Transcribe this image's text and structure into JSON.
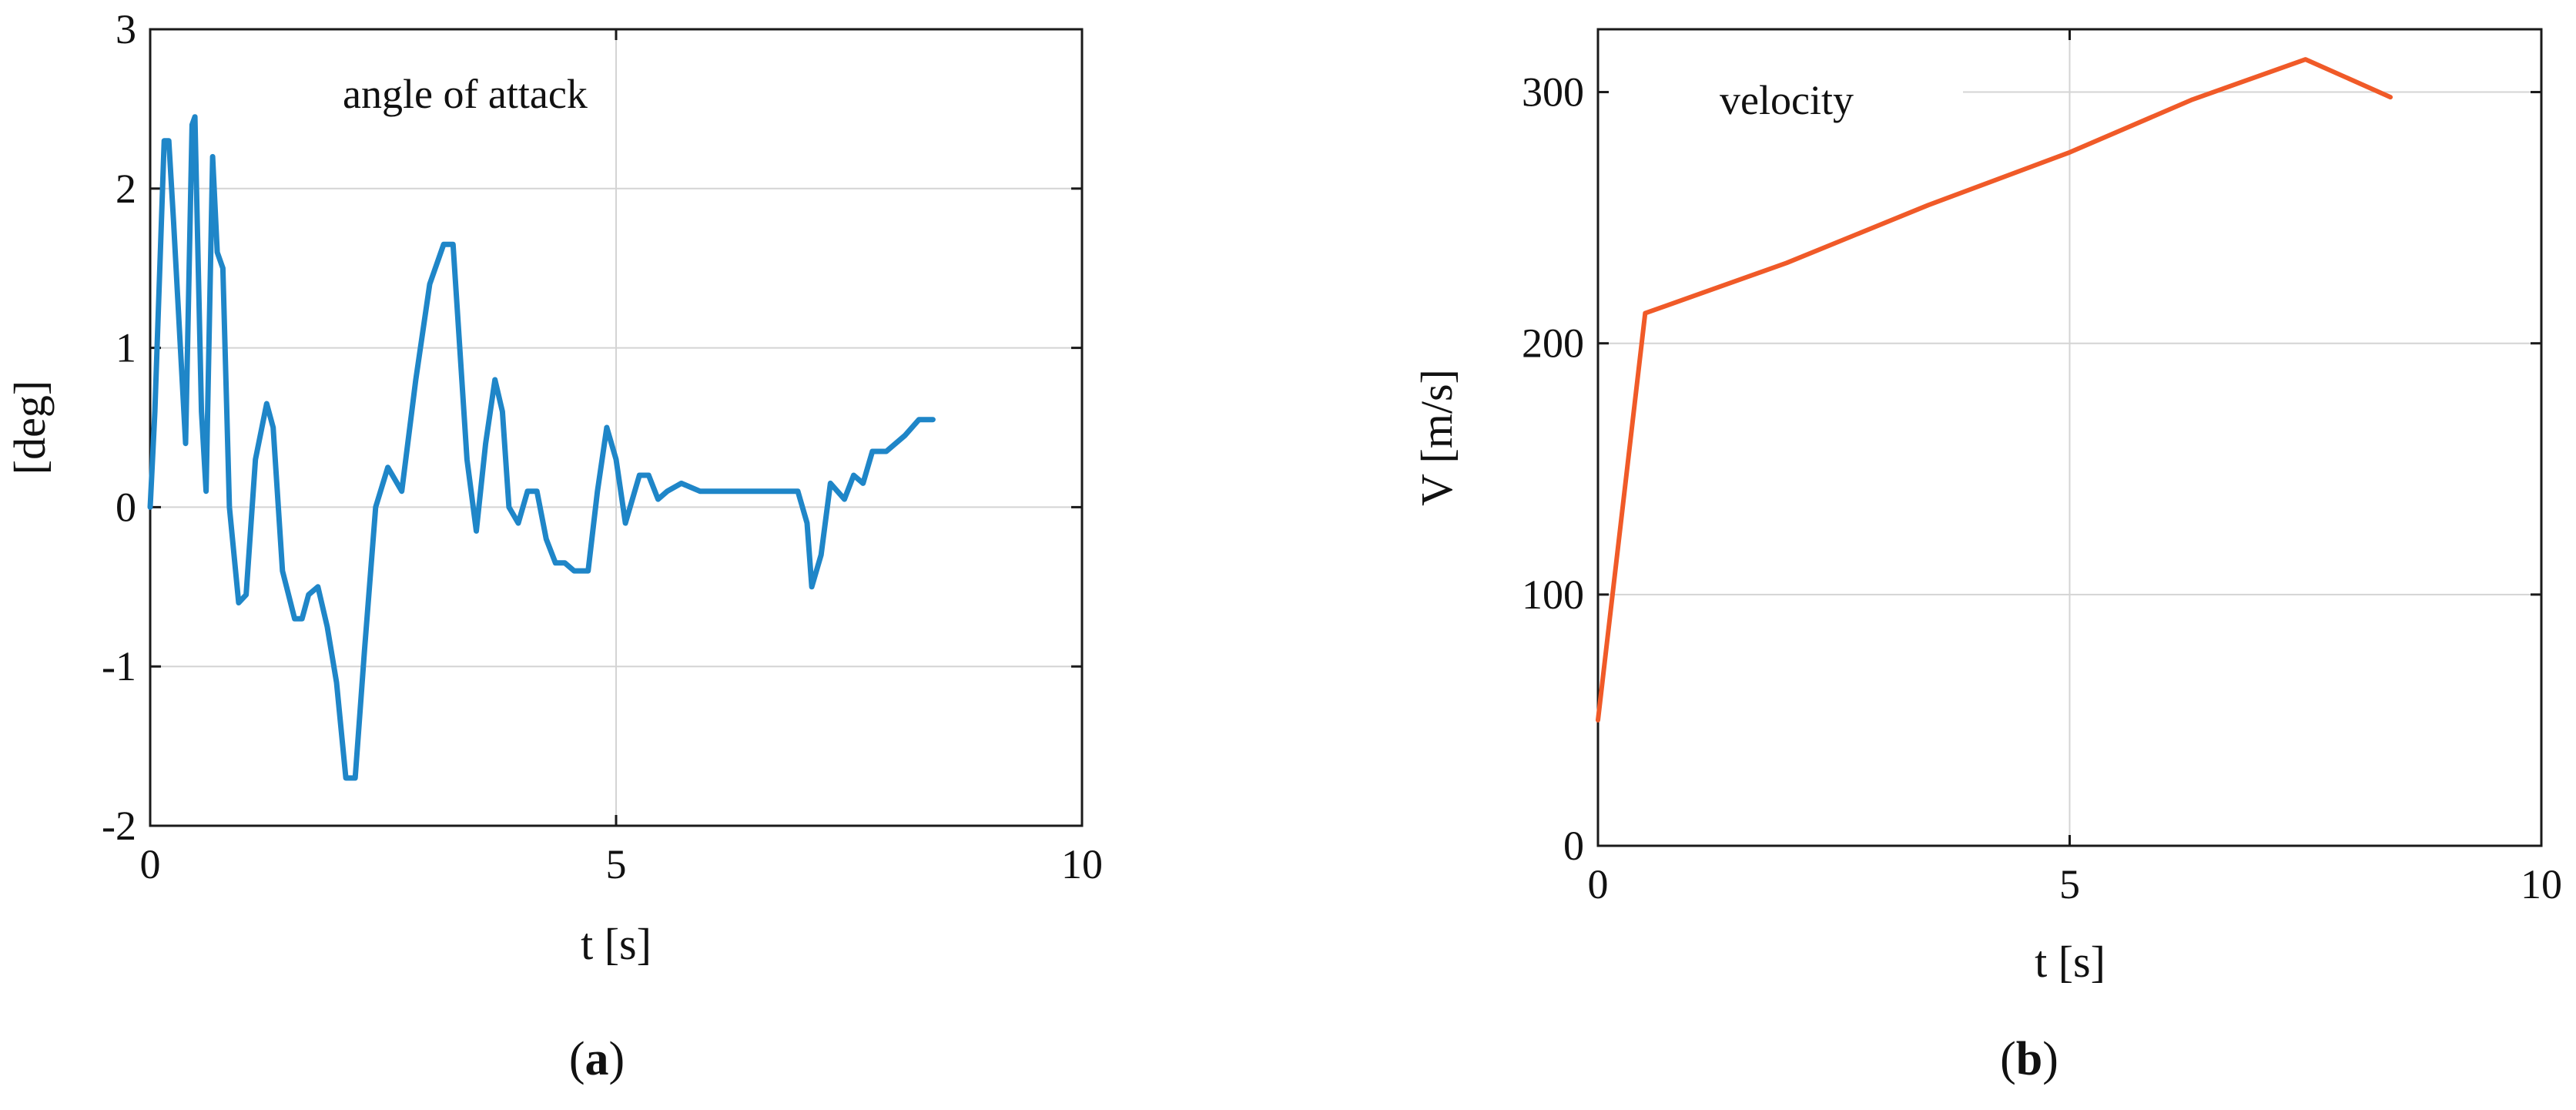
{
  "colors": {
    "panel_a_line": "#1f86c8",
    "panel_b_line": "#f05a28",
    "grid": "#d4d4d4",
    "axes": "#1a1a1a"
  },
  "panels": [
    {
      "caption_prefix": "(",
      "caption_letter": "a",
      "caption_suffix": ")"
    },
    {
      "caption_prefix": "(",
      "caption_letter": "b",
      "caption_suffix": ")"
    }
  ],
  "chart_data": [
    {
      "type": "line",
      "title": "angle of attack",
      "xlabel": "t [s]",
      "ylabel": "[deg]",
      "xlim": [
        0,
        10
      ],
      "ylim": [
        -2,
        3
      ],
      "xticks": [
        0,
        5,
        10
      ],
      "yticks": [
        -2,
        -1,
        0,
        1,
        2,
        3
      ],
      "xtick_labels": [
        "0",
        "5",
        "10"
      ],
      "ytick_labels": [
        "-2",
        "-1",
        "0",
        "1",
        "2",
        "3"
      ],
      "grid": true,
      "series": [
        {
          "x": [
            0,
            0.05,
            0.15,
            0.2,
            0.25,
            0.38,
            0.45,
            0.48,
            0.55,
            0.6,
            0.67,
            0.72,
            0.78,
            0.85,
            0.95,
            1.03,
            1.13,
            1.25,
            1.32,
            1.42,
            1.55,
            1.63,
            1.7,
            1.8,
            1.9,
            2.0,
            2.1,
            2.2,
            2.3,
            2.42,
            2.55,
            2.7,
            2.85,
            3.0,
            3.15,
            3.25,
            3.4,
            3.5,
            3.6,
            3.7,
            3.78,
            3.85,
            3.95,
            4.05,
            4.15,
            4.25,
            4.35,
            4.45,
            4.55,
            4.7,
            4.8,
            4.9,
            5.0,
            5.1,
            5.25,
            5.35,
            5.45,
            5.55,
            5.7,
            5.9,
            6.0,
            6.2,
            6.4,
            6.6,
            6.8,
            6.95,
            7.05,
            7.1,
            7.2,
            7.3,
            7.45,
            7.55,
            7.65,
            7.75,
            7.9,
            8.1,
            8.25,
            8.4
          ],
          "y": [
            0,
            0.6,
            2.3,
            2.3,
            1.8,
            0.4,
            2.4,
            2.45,
            0.6,
            0.1,
            2.2,
            1.6,
            1.5,
            0,
            -0.6,
            -0.55,
            0.3,
            0.65,
            0.5,
            -0.4,
            -0.7,
            -0.7,
            -0.55,
            -0.5,
            -0.75,
            -1.1,
            -1.7,
            -1.7,
            -0.9,
            0,
            0.25,
            0.1,
            0.8,
            1.4,
            1.65,
            1.65,
            0.3,
            -0.15,
            0.4,
            0.8,
            0.6,
            0,
            -0.1,
            0.1,
            0.1,
            -0.2,
            -0.35,
            -0.35,
            -0.4,
            -0.4,
            0.1,
            0.5,
            0.3,
            -0.1,
            0.2,
            0.2,
            0.05,
            0.1,
            0.15,
            0.1,
            0.1,
            0.1,
            0.1,
            0.1,
            0.1,
            0.1,
            -0.1,
            -0.5,
            -0.3,
            0.15,
            0.05,
            0.2,
            0.15,
            0.35,
            0.35,
            0.45,
            0.55,
            0.55
          ]
        }
      ]
    },
    {
      "type": "line",
      "title": "velocity",
      "xlabel": "t [s]",
      "ylabel": "V [m/s]",
      "xlim": [
        0,
        10
      ],
      "ylim": [
        0,
        325
      ],
      "xticks": [
        0,
        5,
        10
      ],
      "yticks": [
        0,
        100,
        200,
        300
      ],
      "xtick_labels": [
        "0",
        "5",
        "10"
      ],
      "ytick_labels": [
        "0",
        "100",
        "200",
        "300"
      ],
      "grid": true,
      "series": [
        {
          "x": [
            0,
            0.5,
            2.0,
            3.5,
            5.0,
            6.3,
            7.5,
            8.4
          ],
          "y": [
            50,
            212,
            232,
            255,
            276,
            297,
            313,
            298
          ]
        }
      ]
    }
  ]
}
